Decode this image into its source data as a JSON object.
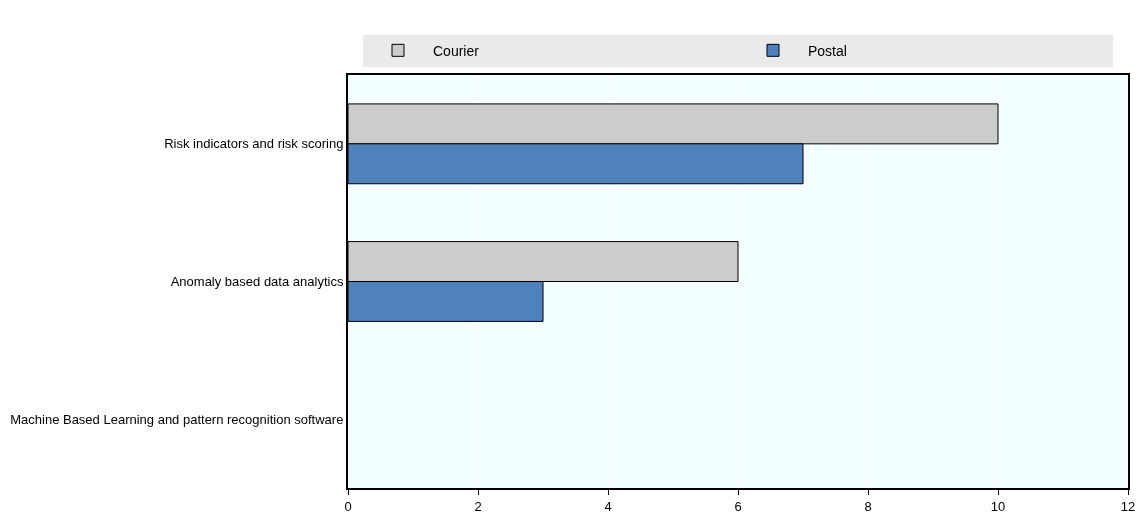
{
  "chart_data": {
    "type": "bar",
    "orientation": "horizontal",
    "categories": [
      "Risk indicators and risk scoring",
      "Anomaly based data analytics",
      "Machine Based Learning and pattern recognition software"
    ],
    "series": [
      {
        "name": "Courier",
        "color": "#cccccc",
        "values": [
          10,
          6,
          0
        ]
      },
      {
        "name": "Postal",
        "color": "#4f81bd",
        "values": [
          7,
          3,
          0
        ]
      }
    ],
    "xlim": [
      0,
      12
    ],
    "xticks": [
      0,
      2,
      4,
      6,
      8,
      10,
      12
    ],
    "grid": "x",
    "legend": "top"
  }
}
